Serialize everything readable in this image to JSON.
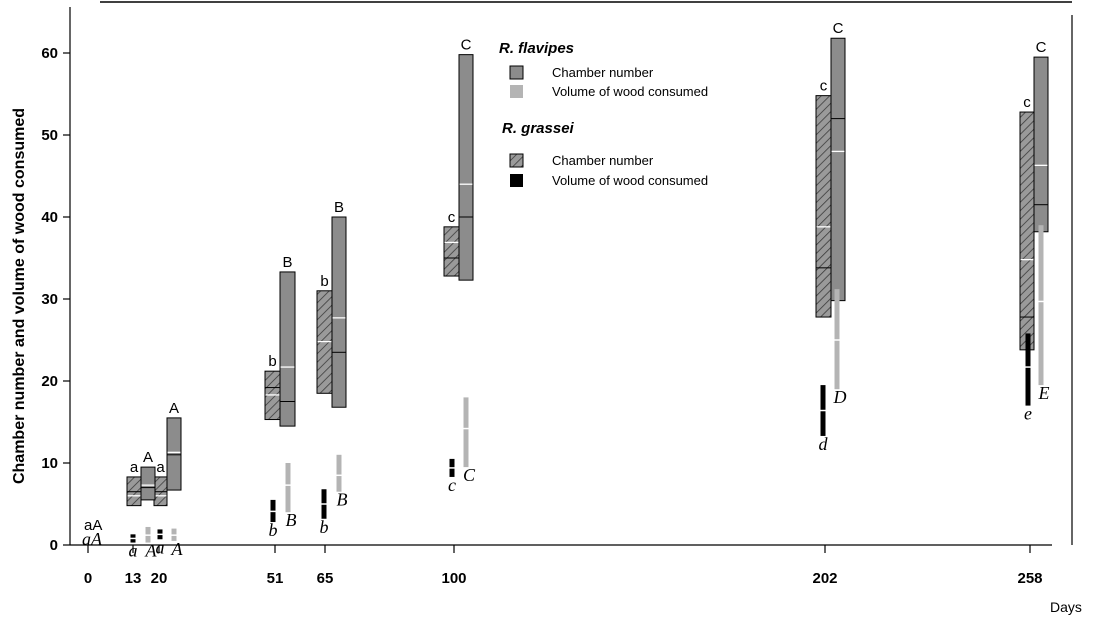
{
  "chart_data": {
    "type": "box",
    "xlabel": "Days",
    "ylabel": "Chamber number and volume of wood consumed",
    "ylim": [
      0,
      65
    ],
    "yticks": [
      0,
      10,
      20,
      30,
      40,
      50,
      60
    ],
    "x_ticks": [
      0,
      13,
      20,
      51,
      65,
      100,
      202,
      258
    ],
    "x_tick_labels": [
      "0",
      "13",
      "20",
      "51",
      "65",
      "100",
      "202",
      "258"
    ],
    "colors": {
      "flavipes_chamber": "#8c8c8c",
      "flavipes_wood": "#b4b4b4",
      "grassei_chamber": "#9a9a9a",
      "grassei_wood": "#000000"
    },
    "legend": {
      "position": "top-center",
      "groups": [
        {
          "title": "R. flavipes",
          "items": [
            {
              "label": "Chamber number",
              "key": "flavipes_chamber"
            },
            {
              "label": "Volume of wood consumed",
              "key": "flavipes_wood"
            }
          ]
        },
        {
          "title": "R. grassei",
          "items": [
            {
              "label": "Chamber number",
              "key": "grassei_chamber"
            },
            {
              "label": "Volume of wood consumed",
              "key": "grassei_wood"
            }
          ]
        }
      ]
    },
    "series": [
      {
        "key": "grassei_chamber",
        "points": [
          {
            "x": 13,
            "min": 4.8,
            "max": 8.3,
            "median": 6.5,
            "mean": 6.0,
            "letter": "a"
          },
          {
            "x": 20,
            "min": 4.8,
            "max": 8.3,
            "median": 6.5,
            "mean": 6.0,
            "letter": "a"
          },
          {
            "x": 51,
            "min": 15.3,
            "max": 21.2,
            "median": 19.2,
            "mean": 18.3,
            "letter": "b"
          },
          {
            "x": 65,
            "min": 18.5,
            "max": 31.0,
            "median": 24.8,
            "mean": 24.8,
            "letter": "b"
          },
          {
            "x": 100,
            "min": 32.8,
            "max": 38.8,
            "median": 35.0,
            "mean": 36.9,
            "letter": "c"
          },
          {
            "x": 202,
            "min": 27.8,
            "max": 54.8,
            "median": 33.8,
            "mean": 38.8,
            "letter": "c"
          },
          {
            "x": 258,
            "min": 23.8,
            "max": 52.8,
            "median": 27.8,
            "mean": 34.8,
            "letter": "c"
          }
        ]
      },
      {
        "key": "flavipes_chamber",
        "points": [
          {
            "x": 13,
            "min": 5.5,
            "max": 9.5,
            "median": 7.0,
            "mean": 7.3,
            "letter": "A"
          },
          {
            "x": 20,
            "min": 6.7,
            "max": 15.5,
            "median": 11.0,
            "mean": 11.3,
            "letter": "A"
          },
          {
            "x": 51,
            "min": 14.5,
            "max": 33.3,
            "median": 17.5,
            "mean": 21.7,
            "letter": "B"
          },
          {
            "x": 65,
            "min": 16.8,
            "max": 40.0,
            "median": 23.5,
            "mean": 27.7,
            "letter": "B"
          },
          {
            "x": 100,
            "min": 32.3,
            "max": 59.8,
            "median": 40.0,
            "mean": 44.0,
            "letter": "C"
          },
          {
            "x": 202,
            "min": 29.8,
            "max": 61.8,
            "median": 52.0,
            "mean": 48.0,
            "letter": "C"
          },
          {
            "x": 258,
            "min": 38.2,
            "max": 59.5,
            "median": 41.5,
            "mean": 46.3,
            "letter": "C"
          }
        ]
      },
      {
        "key": "grassei_wood",
        "points": [
          {
            "x": 13,
            "min": 0.3,
            "max": 1.3,
            "mean": 0.8,
            "letter": "a"
          },
          {
            "x": 20,
            "min": 0.7,
            "max": 1.9,
            "mean": 1.3,
            "letter": "a"
          },
          {
            "x": 51,
            "min": 2.8,
            "max": 5.5,
            "mean": 4.1,
            "letter": "b"
          },
          {
            "x": 65,
            "min": 3.2,
            "max": 6.8,
            "mean": 5.0,
            "letter": "b"
          },
          {
            "x": 100,
            "min": 8.3,
            "max": 10.5,
            "mean": 9.4,
            "letter": "c"
          },
          {
            "x": 202,
            "min": 13.3,
            "max": 19.5,
            "mean": 16.4,
            "letter": "d"
          },
          {
            "x": 258,
            "min": 17.0,
            "max": 25.8,
            "mean": 21.7,
            "letter": "e"
          }
        ]
      },
      {
        "key": "flavipes_wood",
        "points": [
          {
            "x": 13,
            "min": 0.3,
            "max": 2.2,
            "mean": 1.2,
            "letter": "A"
          },
          {
            "x": 20,
            "min": 0.5,
            "max": 2.0,
            "mean": 1.2,
            "letter": "A"
          },
          {
            "x": 51,
            "min": 4.0,
            "max": 10.0,
            "mean": 7.3,
            "letter": "B"
          },
          {
            "x": 65,
            "min": 6.5,
            "max": 11.0,
            "mean": 8.5,
            "letter": "B"
          },
          {
            "x": 100,
            "min": 9.5,
            "max": 18.0,
            "mean": 14.2,
            "letter": "C"
          },
          {
            "x": 202,
            "min": 19.0,
            "max": 31.2,
            "mean": 25.0,
            "letter": "D"
          },
          {
            "x": 258,
            "min": 19.5,
            "max": 39.0,
            "mean": 29.7,
            "letter": "E"
          }
        ]
      }
    ],
    "day0_letters": {
      "chamber_grassei": "a",
      "chamber_flavipes": "A",
      "wood_grassei": "a",
      "wood_flavipes": "A"
    }
  }
}
